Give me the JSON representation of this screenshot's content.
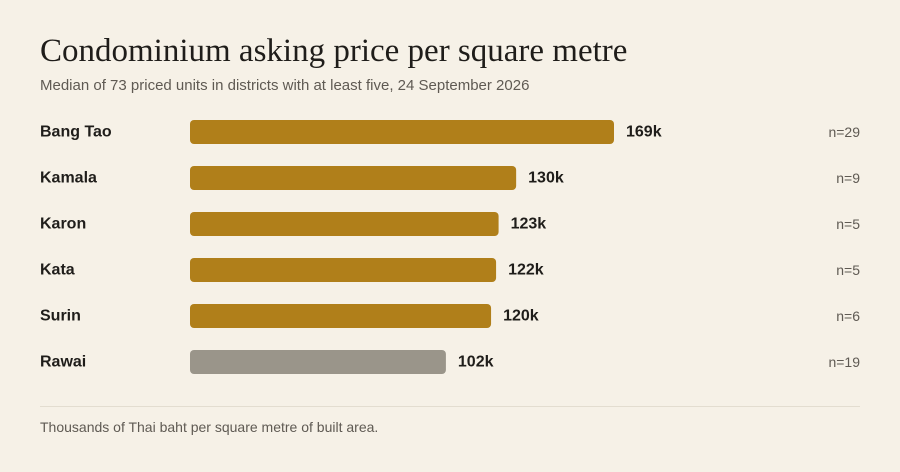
{
  "title": "Condominium asking price per square metre",
  "subtitle": "Median of 73 priced units in districts with at least five, 24 September 2026",
  "footnote": "Thousands of Thai baht per square metre of built area.",
  "colors": {
    "background": "#f6f1e7",
    "bar": "#b07f1a",
    "bar_highlight": "#9a958a"
  },
  "chart_data": {
    "type": "bar",
    "orientation": "horizontal",
    "title": "Condominium asking price per square metre",
    "subtitle": "Median of 73 priced units in districts with at least five, 24 September 2026",
    "categories": [
      "Bang Tao",
      "Kamala",
      "Karon",
      "Kata",
      "Surin",
      "Rawai"
    ],
    "values": [
      169,
      130,
      123,
      122,
      120,
      102
    ],
    "value_labels": [
      "169k",
      "130k",
      "123k",
      "122k",
      "120k",
      "102k"
    ],
    "counts": [
      "n=29",
      "n=9",
      "n=5",
      "n=5",
      "n=6",
      "n=19"
    ],
    "highlighted_category": "Rawai",
    "xlim": [
      0,
      169
    ],
    "grid": false,
    "legend": "none"
  }
}
